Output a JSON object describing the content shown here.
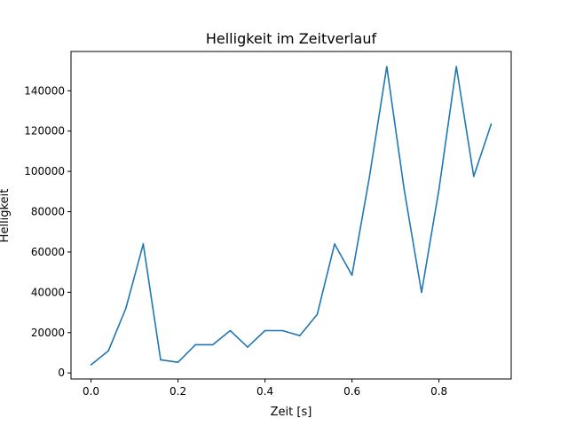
{
  "chart_data": {
    "type": "line",
    "title": "Helligkeit im Zeitverlauf",
    "xlabel": "Zeit [s]",
    "ylabel": "Helligkeit",
    "xlim": [
      -0.046,
      0.966
    ],
    "ylim": [
      -3000,
      159500
    ],
    "xticks": [
      0.0,
      0.2,
      0.4,
      0.6,
      0.8
    ],
    "xtick_labels": [
      "0.0",
      "0.2",
      "0.4",
      "0.6",
      "0.8"
    ],
    "yticks": [
      0,
      20000,
      40000,
      60000,
      80000,
      100000,
      120000,
      140000
    ],
    "ytick_labels": [
      "0",
      "20000",
      "40000",
      "60000",
      "80000",
      "100000",
      "120000",
      "140000"
    ],
    "grid": false,
    "series": [
      {
        "color": "#1f77b4",
        "x": [
          0.0,
          0.04,
          0.08,
          0.12,
          0.16,
          0.2,
          0.24,
          0.28,
          0.32,
          0.36,
          0.4,
          0.44,
          0.48,
          0.52,
          0.56,
          0.6,
          0.64,
          0.68,
          0.72,
          0.76,
          0.8,
          0.84,
          0.88,
          0.92
        ],
        "y": [
          4000,
          11000,
          32000,
          64000,
          6500,
          5300,
          14000,
          14000,
          21000,
          12800,
          21000,
          21000,
          18500,
          29000,
          64000,
          48500,
          97000,
          152000,
          91000,
          40000,
          91000,
          152000,
          97500,
          123500
        ]
      }
    ]
  }
}
